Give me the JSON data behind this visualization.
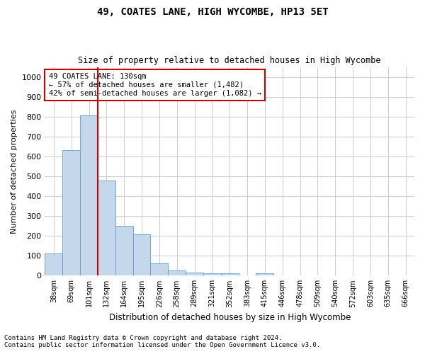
{
  "title1": "49, COATES LANE, HIGH WYCOMBE, HP13 5ET",
  "title2": "Size of property relative to detached houses in High Wycombe",
  "xlabel": "Distribution of detached houses by size in High Wycombe",
  "ylabel": "Number of detached properties",
  "categories": [
    "38sqm",
    "69sqm",
    "101sqm",
    "132sqm",
    "164sqm",
    "195sqm",
    "226sqm",
    "258sqm",
    "289sqm",
    "321sqm",
    "352sqm",
    "383sqm",
    "415sqm",
    "446sqm",
    "478sqm",
    "509sqm",
    "540sqm",
    "572sqm",
    "603sqm",
    "635sqm",
    "666sqm"
  ],
  "values": [
    110,
    630,
    805,
    480,
    250,
    207,
    60,
    25,
    17,
    10,
    10,
    0,
    10,
    0,
    0,
    0,
    0,
    0,
    0,
    0,
    0
  ],
  "bar_color": "#c5d8eb",
  "bar_edge_color": "#5a9ec9",
  "highlight_index": 3,
  "highlight_line_color": "#cc0000",
  "annotation_text": "49 COATES LANE: 130sqm\n← 57% of detached houses are smaller (1,482)\n42% of semi-detached houses are larger (1,082) →",
  "annotation_box_color": "#ffffff",
  "annotation_box_edge_color": "#cc0000",
  "ylim": [
    0,
    1050
  ],
  "yticks": [
    0,
    100,
    200,
    300,
    400,
    500,
    600,
    700,
    800,
    900,
    1000
  ],
  "footnote1": "Contains HM Land Registry data © Crown copyright and database right 2024.",
  "footnote2": "Contains public sector information licensed under the Open Government Licence v3.0.",
  "background_color": "#ffffff",
  "grid_color": "#cccccc"
}
